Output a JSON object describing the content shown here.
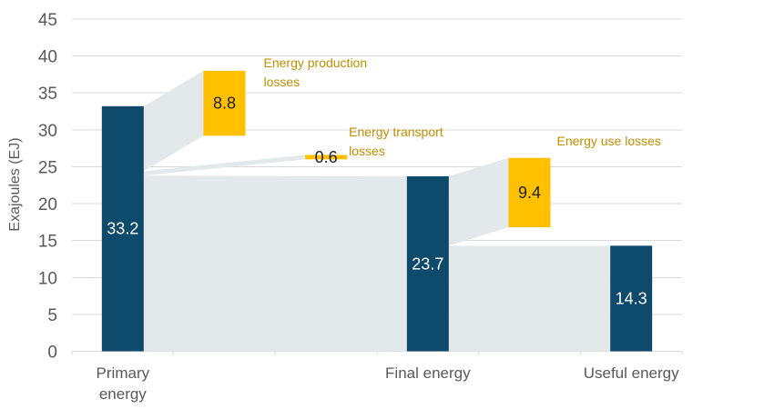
{
  "chart_data": {
    "type": "waterfall",
    "title": "",
    "ylabel": "Exajoules (EJ)",
    "ylim": [
      0,
      45
    ],
    "yticks": [
      0,
      5,
      10,
      15,
      20,
      25,
      30,
      35,
      40,
      45
    ],
    "unit": "EJ",
    "grid": true,
    "bars": [
      {
        "name": "primary-energy",
        "label": "33.2",
        "value": 33.2,
        "role": "energy",
        "slot": 0,
        "span": [
          0,
          33.2
        ]
      },
      {
        "name": "energy-production-losses",
        "label": "8.8",
        "value": 8.8,
        "role": "loss",
        "slot": 1,
        "span": [
          29.2,
          38
        ]
      },
      {
        "name": "energy-transport-losses",
        "label": "0.6",
        "value": 0.6,
        "role": "loss",
        "slot": 2,
        "span": [
          26,
          26.6
        ]
      },
      {
        "name": "final-energy",
        "label": "23.7",
        "value": 23.7,
        "role": "energy",
        "slot": 3,
        "span": [
          0,
          23.7
        ]
      },
      {
        "name": "energy-use-losses",
        "label": "9.4",
        "value": 9.4,
        "role": "loss",
        "slot": 4,
        "span": [
          16.8,
          26.2
        ]
      },
      {
        "name": "useful-energy",
        "label": "14.3",
        "value": 14.3,
        "role": "energy",
        "slot": 5,
        "span": [
          0,
          14.3
        ]
      }
    ],
    "flows": [
      {
        "from": 0,
        "to": 1,
        "from_span": [
          24.4,
          33.2
        ],
        "to_span": [
          29.2,
          38
        ]
      },
      {
        "from": 0,
        "to": 2,
        "from_span": [
          23.8,
          24.4
        ],
        "to_span": [
          26,
          26.6
        ]
      },
      {
        "from": 0,
        "to": 3,
        "from_span": [
          0,
          23.8
        ],
        "to_span": [
          0,
          23.7
        ]
      },
      {
        "from": 3,
        "to": 4,
        "from_span": [
          14.3,
          23.7
        ],
        "to_span": [
          16.8,
          26.2
        ]
      },
      {
        "from": 3,
        "to": 5,
        "from_span": [
          0,
          14.3
        ],
        "to_span": [
          0,
          14.3
        ]
      }
    ],
    "x_axis_labels": [
      {
        "slot": 0,
        "lines": [
          "Primary",
          "energy"
        ]
      },
      {
        "slot": 3,
        "lines": [
          "Final energy"
        ]
      },
      {
        "slot": 5,
        "lines": [
          "Useful energy"
        ]
      }
    ],
    "annotations": [
      {
        "bar": 1,
        "lines": [
          "Energy production",
          "losses"
        ]
      },
      {
        "bar": 2,
        "lines": [
          "Energy transport",
          "losses"
        ]
      },
      {
        "bar": 4,
        "lines": [
          "Energy use losses"
        ]
      }
    ],
    "colors": {
      "energy_bar": "#0E4A6B",
      "loss_bar": "#FFC000",
      "flow_band": "#E3E8EB",
      "gridline": "#D9D9D9",
      "axis_text": "#595959",
      "annotation_text": "#BF8F00",
      "value_on_energy": "#FFFFFF",
      "value_on_loss": "#1F1F1F"
    }
  }
}
